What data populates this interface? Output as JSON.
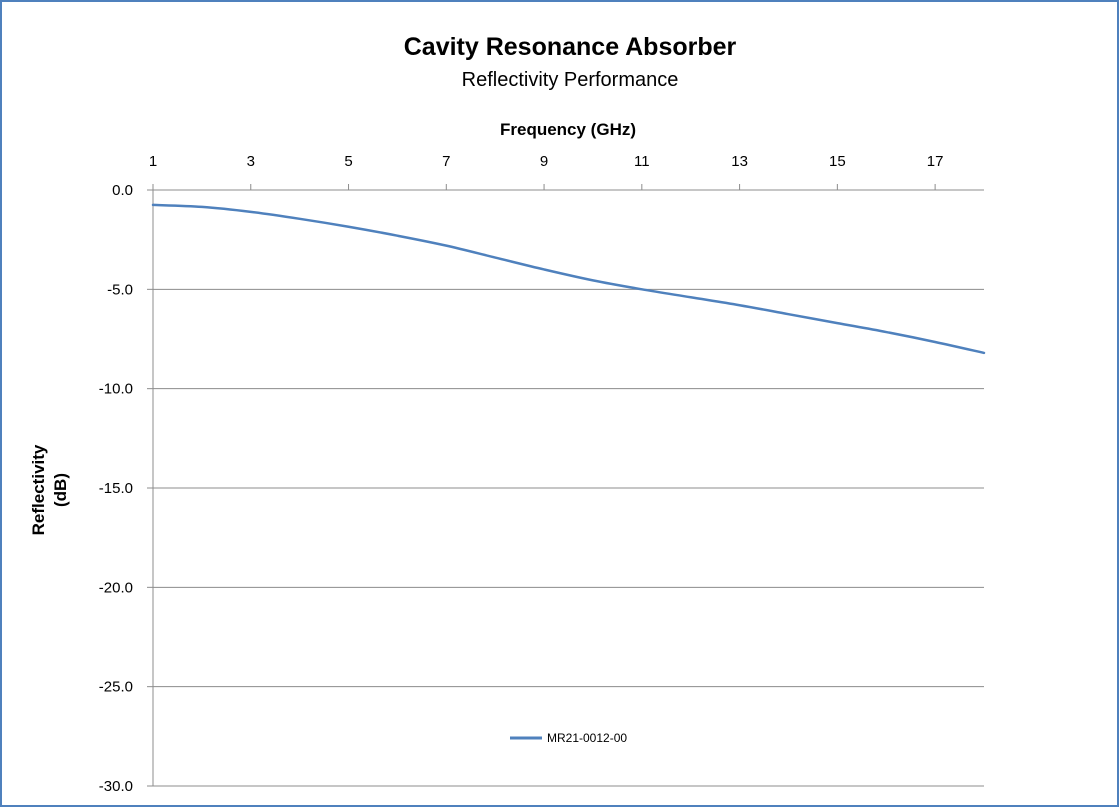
{
  "chart_data": {
    "type": "line",
    "title": "Cavity Resonance Absorber",
    "subtitle": "Reflectivity Performance",
    "xlabel": "Frequency (GHz)",
    "ylabel_lines": [
      "Reflectivity",
      "(dB)"
    ],
    "xlim": [
      1,
      18
    ],
    "ylim": [
      -30,
      0
    ],
    "x_ticks": [
      1,
      3,
      5,
      7,
      9,
      11,
      13,
      15,
      17
    ],
    "y_ticks": [
      0,
      -5,
      -10,
      -15,
      -20,
      -25,
      -30
    ],
    "y_tick_labels": [
      "0.0",
      "-5.0",
      "-10.0",
      "-15.0",
      "-20.0",
      "-25.0",
      "-30.0"
    ],
    "x_axis_position": "top",
    "grid": "horizontal",
    "legend_position": "bottom-center",
    "series": [
      {
        "name": "MR21-0012-00",
        "color": "#4f81bd",
        "x": [
          1,
          2,
          3,
          4,
          5,
          6,
          7,
          8,
          9,
          10,
          11,
          12,
          13,
          14,
          15,
          16,
          17,
          18
        ],
        "y": [
          -0.75,
          -0.85,
          -1.1,
          -1.45,
          -1.85,
          -2.3,
          -2.8,
          -3.4,
          -4.0,
          -4.55,
          -5.0,
          -5.4,
          -5.8,
          -6.25,
          -6.7,
          -7.15,
          -7.65,
          -8.2
        ]
      }
    ]
  }
}
